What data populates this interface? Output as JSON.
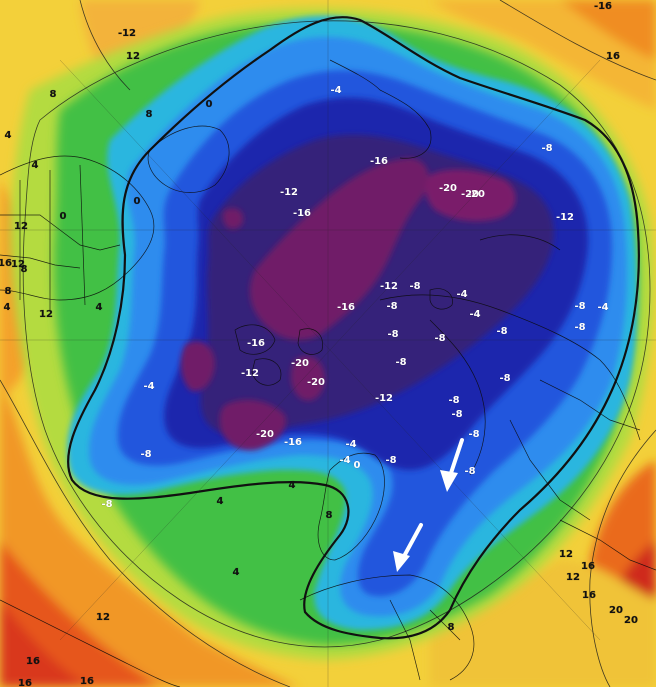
{
  "map": {
    "type": "polar temperature anomaly map",
    "colors": {
      "very_warm": "#d43a1c",
      "warm": "#f07a1f",
      "mild": "#f6b429",
      "yellow": "#f3e13a",
      "lime": "#b9e043",
      "green": "#48c53a",
      "cyan": "#27b0dc",
      "light_blue": "#2d86ec",
      "blue": "#1f52d6",
      "deep_blue": "#1b22a8",
      "purple": "#3a1e7c",
      "magenta": "#6b1863"
    },
    "labels": [
      {
        "text": "-12"
      },
      {
        "text": "12"
      },
      {
        "text": "-16"
      },
      {
        "text": "16"
      },
      {
        "text": "8"
      },
      {
        "text": "0"
      },
      {
        "text": "-4"
      },
      {
        "text": "4"
      },
      {
        "text": "-8"
      },
      {
        "text": "-20"
      },
      {
        "text": "-16"
      },
      {
        "text": "-12"
      },
      {
        "text": "-16"
      },
      {
        "text": "-20"
      },
      {
        "text": "-20"
      },
      {
        "text": "-12"
      },
      {
        "text": "-8"
      },
      {
        "text": "-4"
      },
      {
        "text": "-8"
      },
      {
        "text": "-12"
      },
      {
        "text": "-16"
      },
      {
        "text": "-20"
      },
      {
        "text": "-12"
      },
      {
        "text": "-20"
      },
      {
        "text": "-16"
      },
      {
        "text": "-20"
      },
      {
        "text": "-16"
      },
      {
        "text": "-12"
      },
      {
        "text": "-4"
      },
      {
        "text": "0"
      },
      {
        "text": "-8"
      },
      {
        "text": "-4"
      },
      {
        "text": "-8"
      },
      {
        "text": "-4"
      },
      {
        "text": "4"
      },
      {
        "text": "-8"
      },
      {
        "text": "-8"
      },
      {
        "text": "-8"
      },
      {
        "text": "-8"
      },
      {
        "text": "-8"
      },
      {
        "text": "-8"
      },
      {
        "text": "-8"
      },
      {
        "text": "-4"
      },
      {
        "text": "0"
      },
      {
        "text": "4"
      },
      {
        "text": "4"
      },
      {
        "text": "4"
      },
      {
        "text": "8"
      },
      {
        "text": "12"
      },
      {
        "text": "12"
      },
      {
        "text": "16"
      },
      {
        "text": "16"
      },
      {
        "text": "20"
      },
      {
        "text": "20"
      },
      {
        "text": "8"
      },
      {
        "text": "12"
      },
      {
        "text": "16"
      },
      {
        "text": "16"
      },
      {
        "text": "16"
      },
      {
        "text": "12"
      },
      {
        "text": "8"
      },
      {
        "text": "4"
      },
      {
        "text": "0"
      },
      {
        "text": "8"
      },
      {
        "text": "12"
      },
      {
        "text": "16"
      },
      {
        "text": "12"
      },
      {
        "text": "8"
      },
      {
        "text": "4"
      },
      {
        "text": "-8"
      },
      {
        "text": "-8"
      },
      {
        "text": "-4"
      },
      {
        "text": "-8"
      },
      {
        "text": "-8"
      },
      {
        "text": "-8"
      }
    ],
    "arrows": [
      {
        "name": "arrow-1"
      },
      {
        "name": "arrow-2"
      }
    ]
  }
}
